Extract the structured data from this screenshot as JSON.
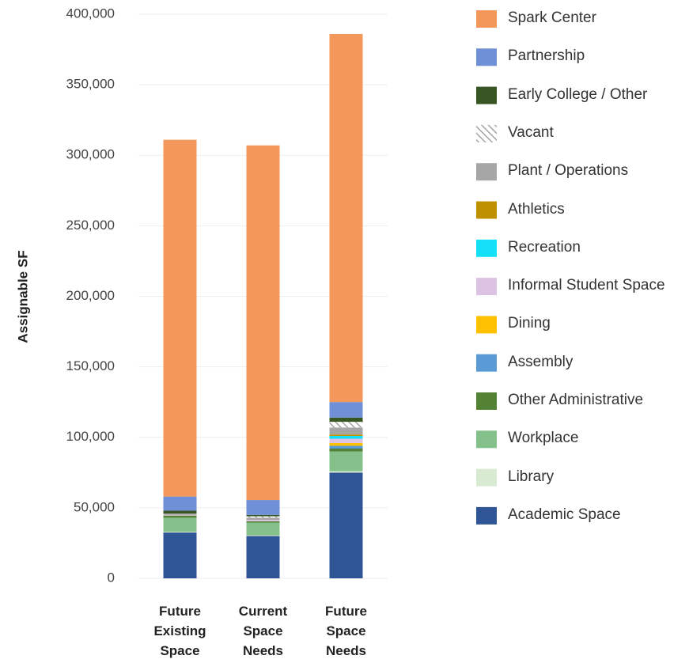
{
  "chart_data": {
    "type": "stacked_bar",
    "y_label": "Assignable SF",
    "categories": [
      "Future Existing Space",
      "Current Space Needs",
      "Future Space Needs"
    ],
    "ylim": [
      0,
      400000
    ],
    "yticks": [
      0,
      {
        "value": 50000,
        "label": "50,000"
      },
      {
        "value": 100000,
        "label": "100,000"
      },
      {
        "value": 150000,
        "label": "150,000"
      },
      {
        "value": 200000,
        "label": "200,000"
      },
      {
        "value": 250000,
        "label": "250,000"
      },
      {
        "value": 300000,
        "label": "300,000"
      },
      {
        "value": 350000,
        "label": "350,000"
      },
      {
        "value": 400000,
        "label": "400,000"
      }
    ],
    "grid": true,
    "legend": "right",
    "series": [
      {
        "name": "Academic Space",
        "color": "#2f5597",
        "values": [
          32500,
          30000,
          75000
        ]
      },
      {
        "name": "Library",
        "color": "#d9ead3",
        "values": [
          500,
          500,
          1000
        ]
      },
      {
        "name": "Workplace",
        "color": "#84c08a",
        "values": [
          10000,
          9000,
          14000
        ]
      },
      {
        "name": "Other Administrative",
        "color": "#548235",
        "values": [
          1500,
          1000,
          2000
        ]
      },
      {
        "name": "Assembly",
        "color": "#5b9bd5",
        "values": [
          0,
          0,
          2000
        ]
      },
      {
        "name": "Dining",
        "color": "#ffc000",
        "values": [
          0,
          0,
          2000
        ]
      },
      {
        "name": "Informal Student Space",
        "color": "#dcc3e3",
        "values": [
          500,
          1000,
          3000
        ]
      },
      {
        "name": "Recreation",
        "color": "#14e1f7",
        "values": [
          0,
          0,
          2000
        ]
      },
      {
        "name": "Athletics",
        "color": "#bf9000",
        "values": [
          0,
          0,
          1000
        ]
      },
      {
        "name": "Plant / Operations",
        "color": "#a6a6a6",
        "values": [
          1000,
          1500,
          5000
        ]
      },
      {
        "name": "Vacant",
        "color": "#a6a6a6",
        "pattern": "hatch",
        "values": [
          0,
          1000,
          4000
        ]
      },
      {
        "name": "Early College / Other",
        "color": "#375623",
        "values": [
          2000,
          1000,
          3000
        ]
      },
      {
        "name": "Partnership",
        "color": "#6f8fd6",
        "values": [
          10000,
          10500,
          11000
        ]
      },
      {
        "name": "Spark Center",
        "color": "#f4975a",
        "values": [
          253000,
          251500,
          261000
        ]
      }
    ]
  }
}
